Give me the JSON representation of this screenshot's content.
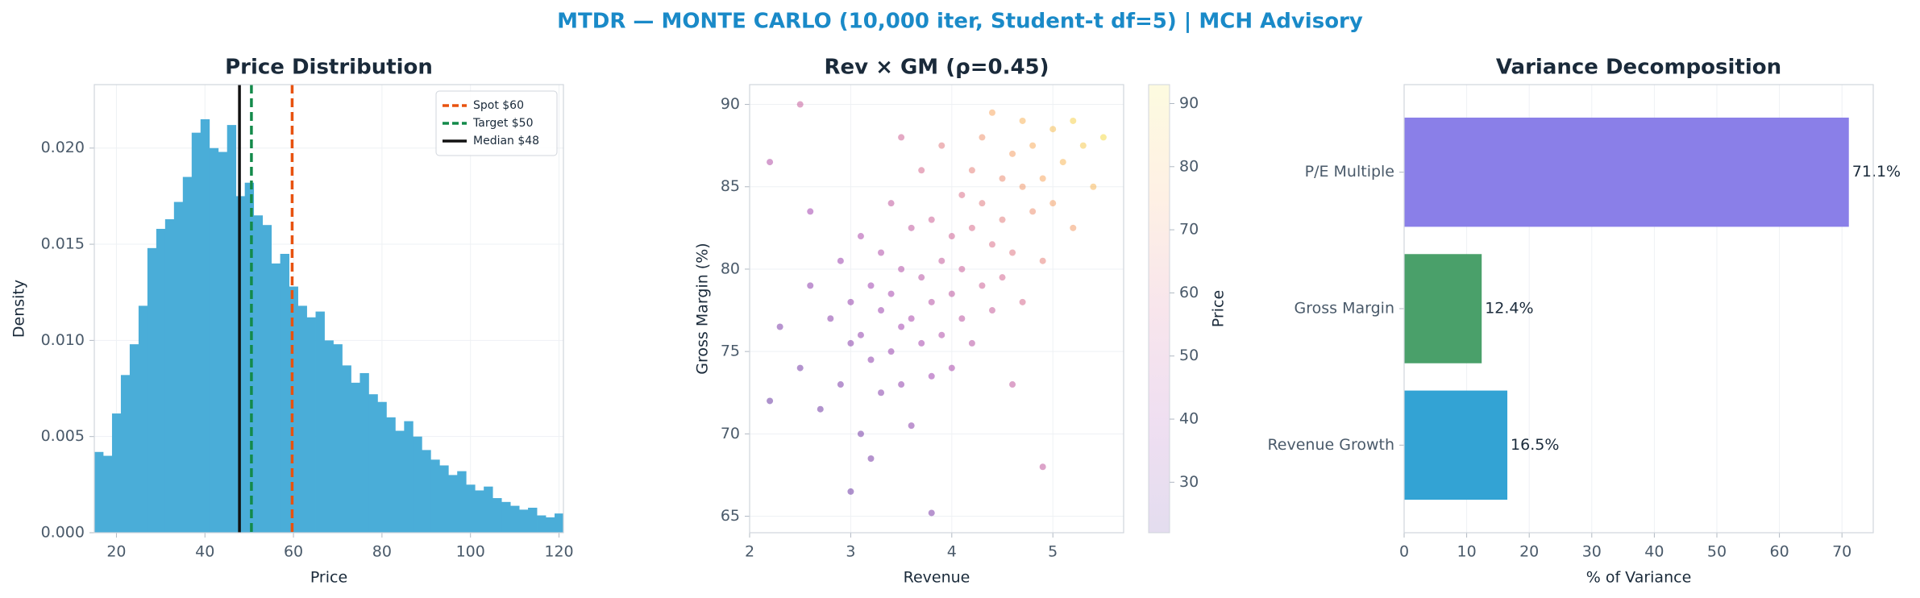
{
  "title": "MTDR — MONTE CARLO (10,000 iter, Student-t df=5) | MCH Advisory",
  "chart_data": [
    {
      "type": "histogram",
      "title": "Price Distribution",
      "xlabel": "Price",
      "ylabel": "Density",
      "color": "#4aadd8",
      "bins": [
        15,
        17,
        19,
        21,
        23,
        25,
        27,
        29,
        31,
        33,
        35,
        37,
        39,
        41,
        43,
        45,
        47,
        49,
        51,
        53,
        55,
        57,
        59,
        61,
        63,
        65,
        67,
        69,
        71,
        73,
        75,
        77,
        79,
        81,
        83,
        85,
        87,
        89,
        91,
        93,
        95,
        97,
        99,
        101,
        103,
        105,
        107,
        109,
        111,
        113,
        115,
        117,
        119,
        121
      ],
      "values": [
        0.0042,
        0.004,
        0.0062,
        0.0082,
        0.0098,
        0.0118,
        0.0148,
        0.0158,
        0.0163,
        0.0172,
        0.0185,
        0.0208,
        0.0215,
        0.02,
        0.0198,
        0.0212,
        0.0175,
        0.0182,
        0.0165,
        0.016,
        0.014,
        0.0145,
        0.0128,
        0.0118,
        0.0112,
        0.0115,
        0.01,
        0.0098,
        0.0087,
        0.0078,
        0.0083,
        0.0072,
        0.0068,
        0.006,
        0.0053,
        0.0058,
        0.005,
        0.0043,
        0.0038,
        0.0035,
        0.003,
        0.0032,
        0.0025,
        0.0022,
        0.0024,
        0.0018,
        0.0016,
        0.0014,
        0.0012,
        0.0013,
        0.0009,
        0.0008,
        0.001
      ],
      "vlines": [
        {
          "value": 59.7,
          "label": "Spot $60",
          "color": "#e8520f",
          "dashed": true
        },
        {
          "value": 50.5,
          "label": "Target $50",
          "color": "#138a4a",
          "dashed": true
        },
        {
          "value": 47.8,
          "label": "Median $48",
          "color": "#111111",
          "dashed": false
        }
      ],
      "legend": "upper right",
      "xlim": [
        15,
        121
      ],
      "xticks": [
        20,
        40,
        60,
        80,
        100,
        120
      ],
      "ylim": [
        0,
        0.0233
      ],
      "yticks": [
        {
          "value": 0,
          "label": "0.000"
        },
        {
          "value": 0.005,
          "label": "0.005"
        },
        {
          "value": 0.01,
          "label": "0.010"
        },
        {
          "value": 0.015,
          "label": "0.015"
        },
        {
          "value": 0.02,
          "label": "0.020"
        }
      ],
      "grid": true
    },
    {
      "type": "scatter",
      "title": "Rev × GM (ρ=0.45)",
      "xlabel": "Revenue",
      "ylabel": "Gross Margin (%)",
      "cmap_colors": [
        "#3b0a8c",
        "#8e1a9e",
        "#cc4778",
        "#f89540",
        "#f0e021"
      ],
      "colorbar_label": "Price",
      "clim": [
        22,
        93
      ],
      "cticks": [
        30,
        40,
        50,
        60,
        70,
        80,
        90
      ],
      "x": [
        2.2,
        2.3,
        2.5,
        2.6,
        2.7,
        2.8,
        2.9,
        2.9,
        3.0,
        3.0,
        3.1,
        3.1,
        3.1,
        3.2,
        3.2,
        3.3,
        3.3,
        3.3,
        3.4,
        3.4,
        3.4,
        3.5,
        3.5,
        3.5,
        3.6,
        3.6,
        3.6,
        3.7,
        3.7,
        3.7,
        3.8,
        3.8,
        3.8,
        3.9,
        3.9,
        3.9,
        4.0,
        4.0,
        4.0,
        4.1,
        4.1,
        4.1,
        4.2,
        4.2,
        4.2,
        4.3,
        4.3,
        4.3,
        4.4,
        4.4,
        4.4,
        4.5,
        4.5,
        4.5,
        4.6,
        4.6,
        4.7,
        4.7,
        4.7,
        4.8,
        4.8,
        4.9,
        4.9,
        5.0,
        5.0,
        5.1,
        5.2,
        5.2,
        5.3,
        5.4,
        5.5,
        3.8,
        2.2,
        2.5,
        4.9,
        3.0,
        2.6,
        3.5,
        4.6,
        3.2
      ],
      "y": [
        72.0,
        76.5,
        74.0,
        79.0,
        71.5,
        77.0,
        73.0,
        80.5,
        75.5,
        78.0,
        70.0,
        76.0,
        82.0,
        74.5,
        79.0,
        77.5,
        72.5,
        81.0,
        75.0,
        78.5,
        84.0,
        76.5,
        73.0,
        80.0,
        77.0,
        82.5,
        70.5,
        75.5,
        79.5,
        86.0,
        78.0,
        73.5,
        83.0,
        80.5,
        76.0,
        87.5,
        82.0,
        78.5,
        74.0,
        84.5,
        80.0,
        77.0,
        86.0,
        82.5,
        75.5,
        79.0,
        88.0,
        84.0,
        81.5,
        77.5,
        89.5,
        85.5,
        83.0,
        79.5,
        87.0,
        81.0,
        85.0,
        89.0,
        78.0,
        83.5,
        87.5,
        85.5,
        80.5,
        88.5,
        84.0,
        86.5,
        89.0,
        82.5,
        87.5,
        85.0,
        88.0,
        65.2,
        86.5,
        90.0,
        68.0,
        66.5,
        83.5,
        88.0,
        73.0,
        68.5
      ],
      "c": [
        25,
        30,
        28,
        34,
        27,
        33,
        30,
        38,
        33,
        36,
        28,
        35,
        43,
        34,
        39,
        38,
        32,
        44,
        37,
        41,
        50,
        40,
        35,
        45,
        42,
        50,
        33,
        41,
        47,
        58,
        46,
        39,
        54,
        51,
        44,
        63,
        55,
        49,
        42,
        60,
        53,
        48,
        65,
        59,
        47,
        54,
        70,
        63,
        60,
        52,
        75,
        68,
        64,
        57,
        73,
        62,
        71,
        79,
        58,
        69,
        77,
        75,
        65,
        82,
        73,
        80,
        87,
        72,
        85,
        80,
        90,
        30,
        45,
        52,
        50,
        26,
        40,
        55,
        50,
        29
      ],
      "xlim": [
        2,
        5.7
      ],
      "xticks": [
        2,
        3,
        4,
        5
      ],
      "ylim": [
        64,
        91.2
      ],
      "yticks": [
        65,
        70,
        75,
        80,
        85,
        90
      ],
      "grid": true
    },
    {
      "type": "hbar",
      "title": "Variance Decomposition",
      "xlabel": "% of Variance",
      "categories": [
        "Revenue Growth",
        "Gross Margin",
        "P/E Multiple"
      ],
      "values": [
        16.5,
        12.4,
        71.1
      ],
      "value_labels": [
        "16.5%",
        "12.4%",
        "71.1%"
      ],
      "colors": [
        "#33a3d4",
        "#4aa06a",
        "#8a7fe8"
      ],
      "xlim": [
        0,
        75
      ],
      "xticks": [
        0,
        10,
        20,
        30,
        40,
        50,
        60,
        70
      ],
      "grid": true
    }
  ]
}
